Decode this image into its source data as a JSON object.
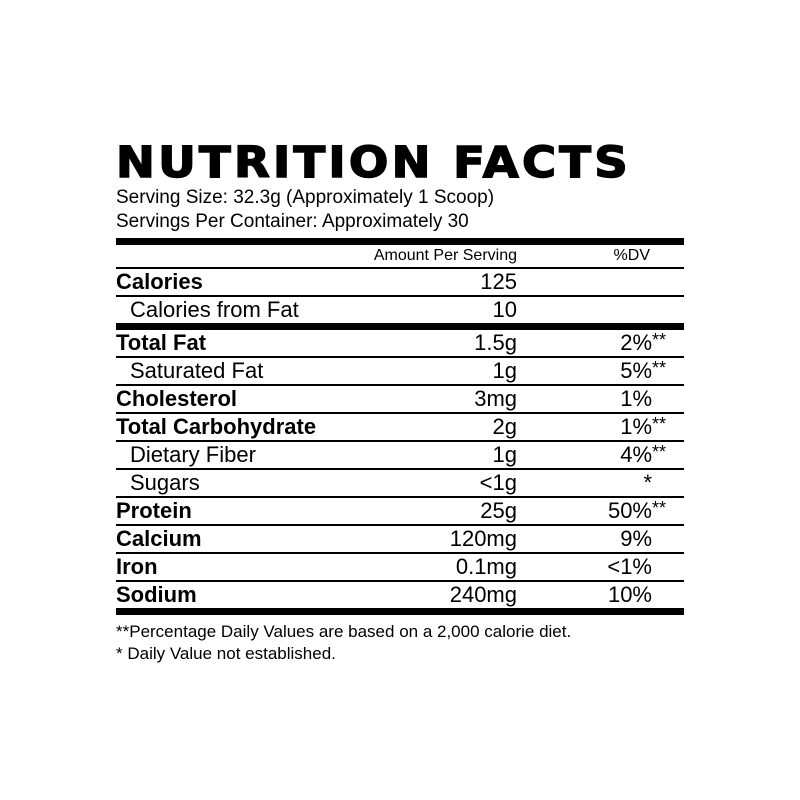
{
  "title": "NUTRITION FACTS",
  "serving_size": "Serving Size: 32.3g (Approximately 1 Scoop)",
  "servings_per_container": "Servings Per Container: Approximately 30",
  "headers": {
    "amount": "Amount Per Serving",
    "dv": "%DV"
  },
  "rows": [
    {
      "name": "Calories",
      "amount": "125",
      "dv": "",
      "mark": "",
      "bold": true
    },
    {
      "name": "Calories from Fat",
      "amount": "10",
      "dv": "",
      "mark": "",
      "bold": false
    },
    {
      "name": "Total Fat",
      "amount": "1.5g",
      "dv": "2%",
      "mark": "**",
      "bold": true
    },
    {
      "name": "Saturated Fat",
      "amount": "1g",
      "dv": "5%",
      "mark": "**",
      "bold": false
    },
    {
      "name": "Cholesterol",
      "amount": "3mg",
      "dv": "1%",
      "mark": "",
      "bold": true
    },
    {
      "name": "Total Carbohydrate",
      "amount": "2g",
      "dv": "1%",
      "mark": "**",
      "bold": true
    },
    {
      "name": "Dietary Fiber",
      "amount": "1g",
      "dv": "4%",
      "mark": "**",
      "bold": false
    },
    {
      "name": "Sugars",
      "amount": "<1g",
      "dv": "*",
      "mark": "",
      "bold": false
    },
    {
      "name": "Protein",
      "amount": "25g",
      "dv": "50%",
      "mark": "**",
      "bold": true
    },
    {
      "name": "Calcium",
      "amount": "120mg",
      "dv": "9%",
      "mark": "",
      "bold": true
    },
    {
      "name": "Iron",
      "amount": "0.1mg",
      "dv": "<1%",
      "mark": "",
      "bold": true
    },
    {
      "name": "Sodium",
      "amount": "240mg",
      "dv": "10%",
      "mark": "",
      "bold": true
    }
  ],
  "footnotes": [
    "**Percentage Daily Values are based on a 2,000 calorie diet.",
    "* Daily Value not established."
  ]
}
